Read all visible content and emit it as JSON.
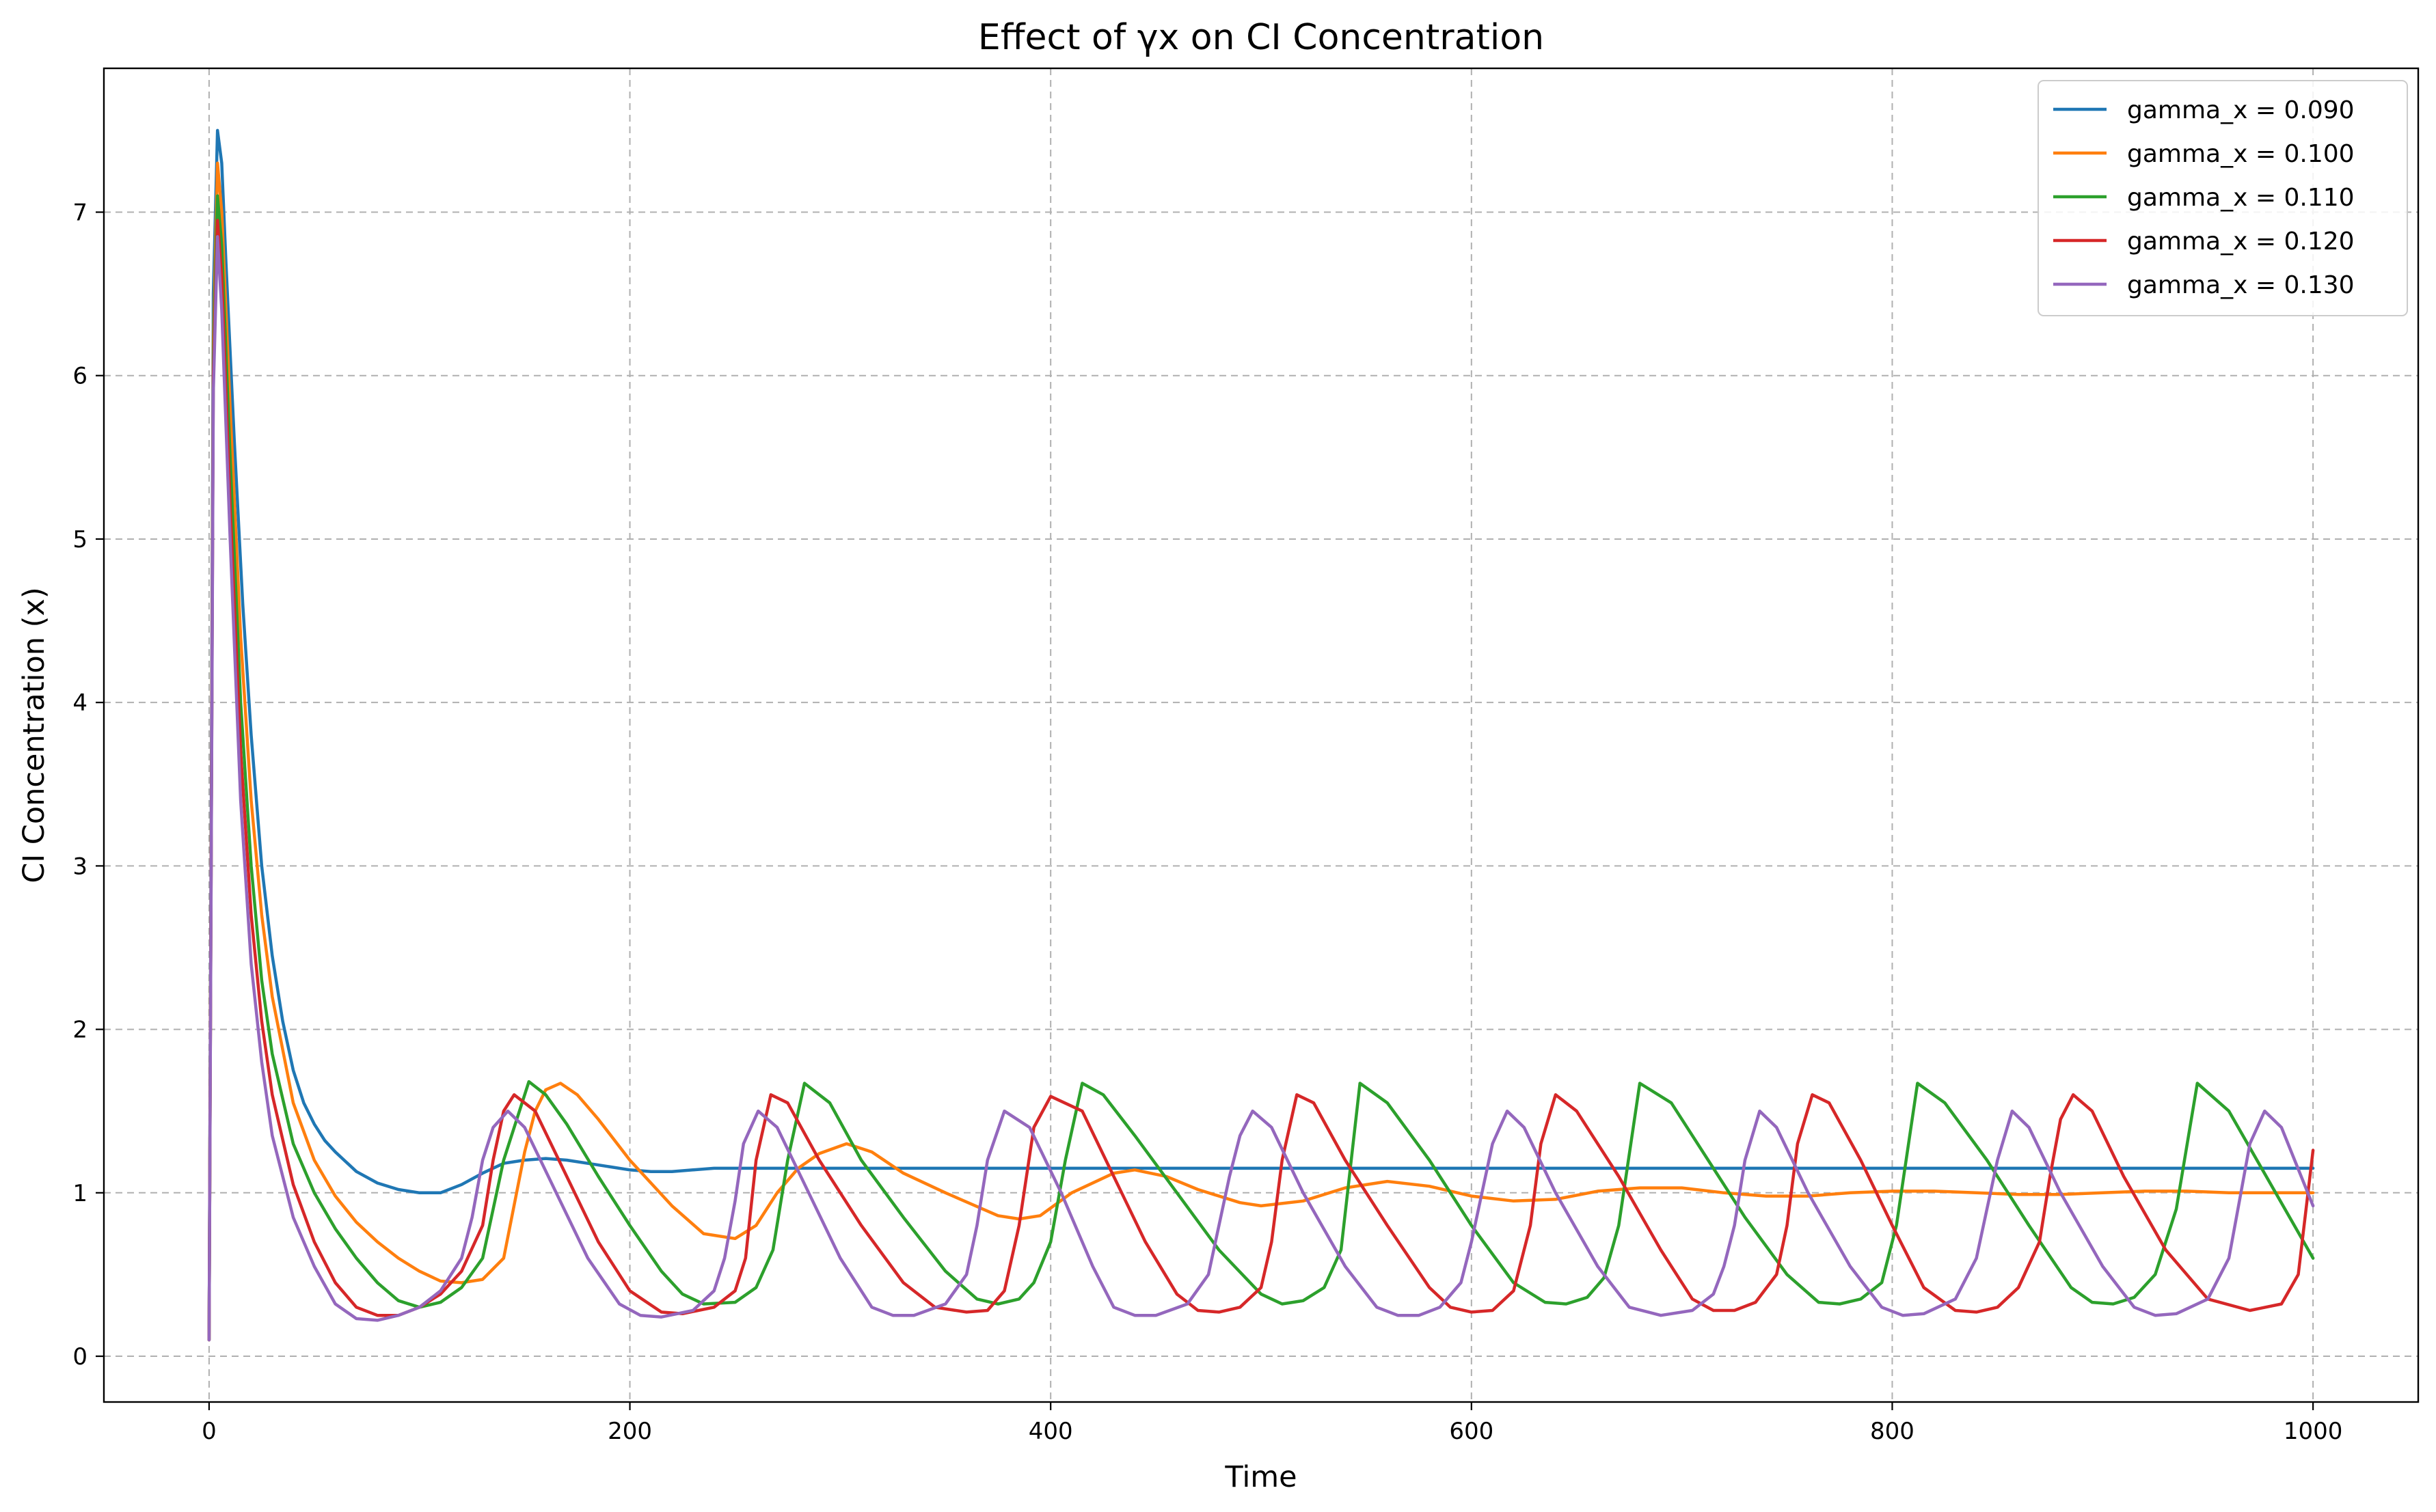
{
  "chart_data": {
    "type": "line",
    "title": "Effect of γx on CI Concentration",
    "xlabel": "Time",
    "ylabel": "CI Concentration (x)",
    "xlim": [
      -50,
      1050
    ],
    "ylim": [
      -0.28,
      7.88
    ],
    "xticks": [
      0,
      200,
      400,
      600,
      800,
      1000
    ],
    "yticks": [
      0,
      1,
      2,
      3,
      4,
      5,
      6,
      7
    ],
    "grid": true,
    "legend_position": "top-right",
    "series": [
      {
        "name": "gamma_x = 0.090",
        "color": "#1f77b4",
        "x": [
          0,
          2,
          4,
          6,
          8,
          12,
          16,
          20,
          25,
          30,
          35,
          40,
          45,
          50,
          55,
          60,
          70,
          80,
          90,
          100,
          110,
          120,
          130,
          140,
          150,
          160,
          170,
          180,
          190,
          200,
          210,
          220,
          230,
          240,
          260,
          280,
          300,
          350,
          400,
          1000
        ],
        "y": [
          0.1,
          6.5,
          7.5,
          7.3,
          6.7,
          5.6,
          4.6,
          3.8,
          3.0,
          2.45,
          2.05,
          1.75,
          1.55,
          1.42,
          1.32,
          1.25,
          1.13,
          1.06,
          1.02,
          1.0,
          1.0,
          1.05,
          1.12,
          1.18,
          1.2,
          1.21,
          1.2,
          1.18,
          1.16,
          1.14,
          1.13,
          1.13,
          1.14,
          1.15,
          1.15,
          1.15,
          1.15,
          1.15,
          1.15,
          1.15
        ]
      },
      {
        "name": "gamma_x = 0.100",
        "color": "#ff7f0e",
        "x": [
          0,
          2,
          4,
          6,
          10,
          15,
          20,
          25,
          30,
          40,
          50,
          60,
          70,
          80,
          90,
          100,
          110,
          120,
          130,
          140,
          150,
          155,
          160,
          167,
          175,
          185,
          200,
          220,
          235,
          250,
          260,
          270,
          280,
          290,
          303,
          315,
          330,
          350,
          375,
          385,
          395,
          410,
          430,
          440,
          455,
          470,
          490,
          500,
          520,
          540,
          560,
          580,
          600,
          620,
          640,
          660,
          680,
          700,
          720,
          740,
          760,
          780,
          800,
          820,
          840,
          860,
          880,
          900,
          920,
          940,
          960,
          980,
          1000
        ],
        "y": [
          0.1,
          6.2,
          7.3,
          7.0,
          5.8,
          4.4,
          3.4,
          2.7,
          2.2,
          1.55,
          1.2,
          0.98,
          0.82,
          0.7,
          0.6,
          0.52,
          0.46,
          0.45,
          0.47,
          0.6,
          1.25,
          1.5,
          1.63,
          1.67,
          1.6,
          1.45,
          1.2,
          0.92,
          0.75,
          0.72,
          0.8,
          1.0,
          1.15,
          1.24,
          1.3,
          1.25,
          1.12,
          1.0,
          0.86,
          0.84,
          0.86,
          1.0,
          1.12,
          1.14,
          1.1,
          1.02,
          0.94,
          0.92,
          0.95,
          1.03,
          1.07,
          1.04,
          0.98,
          0.95,
          0.96,
          1.01,
          1.03,
          1.03,
          1.0,
          0.98,
          0.98,
          1.0,
          1.01,
          1.01,
          1.0,
          0.99,
          0.99,
          1.0,
          1.01,
          1.01,
          1.0,
          1.0,
          1.0
        ]
      },
      {
        "name": "gamma_x = 0.110",
        "color": "#2ca02c",
        "x": [
          0,
          2,
          4,
          6,
          10,
          15,
          20,
          25,
          30,
          40,
          50,
          60,
          70,
          80,
          90,
          100,
          110,
          120,
          130,
          140,
          152,
          160,
          170,
          185,
          200,
          215,
          225,
          235,
          250,
          260,
          268,
          275,
          283,
          295,
          310,
          330,
          350,
          365,
          375,
          385,
          392,
          400,
          407,
          415,
          425,
          440,
          460,
          480,
          500,
          510,
          520,
          530,
          538,
          547,
          560,
          580,
          600,
          620,
          635,
          645,
          655,
          663,
          670,
          680,
          695,
          710,
          730,
          750,
          765,
          775,
          785,
          795,
          802,
          812,
          825,
          845,
          865,
          885,
          895,
          905,
          915,
          925,
          935,
          945,
          960,
          980,
          1000
        ],
        "y": [
          0.1,
          6.1,
          7.1,
          6.8,
          5.5,
          4.0,
          3.0,
          2.3,
          1.85,
          1.3,
          1.0,
          0.78,
          0.6,
          0.45,
          0.34,
          0.3,
          0.33,
          0.42,
          0.6,
          1.2,
          1.68,
          1.6,
          1.42,
          1.1,
          0.8,
          0.52,
          0.38,
          0.32,
          0.33,
          0.42,
          0.65,
          1.2,
          1.67,
          1.55,
          1.2,
          0.85,
          0.52,
          0.35,
          0.32,
          0.35,
          0.45,
          0.7,
          1.2,
          1.67,
          1.6,
          1.35,
          1.0,
          0.65,
          0.38,
          0.32,
          0.34,
          0.42,
          0.65,
          1.67,
          1.55,
          1.2,
          0.8,
          0.45,
          0.33,
          0.32,
          0.36,
          0.48,
          0.8,
          1.67,
          1.55,
          1.25,
          0.85,
          0.5,
          0.33,
          0.32,
          0.35,
          0.45,
          0.8,
          1.67,
          1.55,
          1.2,
          0.8,
          0.42,
          0.33,
          0.32,
          0.36,
          0.5,
          0.9,
          1.67,
          1.5,
          1.05,
          0.6
        ]
      },
      {
        "name": "gamma_x = 0.120",
        "color": "#d62728",
        "x": [
          0,
          2,
          4,
          6,
          10,
          15,
          20,
          25,
          30,
          40,
          50,
          60,
          70,
          80,
          90,
          100,
          110,
          120,
          130,
          135,
          140,
          145,
          155,
          170,
          185,
          200,
          215,
          225,
          240,
          250,
          255,
          260,
          267,
          275,
          290,
          310,
          330,
          345,
          360,
          370,
          378,
          385,
          392,
          400,
          415,
          430,
          445,
          460,
          470,
          480,
          490,
          500,
          505,
          510,
          517,
          525,
          540,
          560,
          580,
          590,
          600,
          610,
          620,
          628,
          633,
          640,
          650,
          670,
          690,
          705,
          715,
          725,
          735,
          745,
          750,
          755,
          762,
          770,
          785,
          800,
          815,
          830,
          840,
          850,
          860,
          870,
          875,
          880,
          886,
          895,
          910,
          930,
          950,
          970,
          985,
          993,
          1000
        ],
        "y": [
          0.1,
          6.0,
          6.95,
          6.6,
          5.2,
          3.7,
          2.7,
          2.05,
          1.6,
          1.05,
          0.7,
          0.45,
          0.3,
          0.25,
          0.25,
          0.3,
          0.38,
          0.52,
          0.8,
          1.2,
          1.5,
          1.6,
          1.5,
          1.1,
          0.7,
          0.4,
          0.27,
          0.26,
          0.3,
          0.4,
          0.6,
          1.2,
          1.6,
          1.55,
          1.2,
          0.8,
          0.45,
          0.3,
          0.27,
          0.28,
          0.4,
          0.8,
          1.4,
          1.59,
          1.5,
          1.1,
          0.7,
          0.38,
          0.28,
          0.27,
          0.3,
          0.42,
          0.7,
          1.2,
          1.6,
          1.55,
          1.2,
          0.8,
          0.42,
          0.3,
          0.27,
          0.28,
          0.4,
          0.8,
          1.3,
          1.6,
          1.5,
          1.1,
          0.65,
          0.35,
          0.28,
          0.28,
          0.33,
          0.5,
          0.8,
          1.3,
          1.6,
          1.55,
          1.2,
          0.8,
          0.42,
          0.28,
          0.27,
          0.3,
          0.42,
          0.7,
          1.1,
          1.45,
          1.6,
          1.5,
          1.1,
          0.65,
          0.35,
          0.28,
          0.32,
          0.5,
          1.26
        ]
      },
      {
        "name": "gamma_x = 0.130",
        "color": "#9467bd",
        "x": [
          0,
          2,
          4,
          6,
          10,
          15,
          20,
          25,
          30,
          40,
          50,
          60,
          70,
          80,
          90,
          100,
          110,
          120,
          125,
          130,
          135,
          142,
          150,
          165,
          180,
          195,
          205,
          215,
          230,
          240,
          245,
          250,
          254,
          261,
          270,
          285,
          300,
          315,
          325,
          335,
          350,
          360,
          365,
          370,
          378,
          390,
          405,
          420,
          430,
          440,
          450,
          465,
          475,
          480,
          485,
          490,
          496,
          505,
          520,
          540,
          555,
          565,
          575,
          585,
          595,
          600,
          605,
          610,
          617,
          625,
          640,
          660,
          675,
          690,
          705,
          715,
          720,
          725,
          730,
          737,
          745,
          760,
          780,
          795,
          805,
          815,
          830,
          840,
          845,
          850,
          857,
          865,
          880,
          900,
          915,
          925,
          935,
          950,
          960,
          965,
          970,
          977,
          985,
          1000
        ],
        "y": [
          0.1,
          5.9,
          6.85,
          6.4,
          5.0,
          3.4,
          2.4,
          1.8,
          1.35,
          0.85,
          0.55,
          0.32,
          0.23,
          0.22,
          0.25,
          0.3,
          0.4,
          0.6,
          0.85,
          1.2,
          1.4,
          1.5,
          1.4,
          1.0,
          0.6,
          0.32,
          0.25,
          0.24,
          0.28,
          0.4,
          0.6,
          0.95,
          1.3,
          1.5,
          1.4,
          1.0,
          0.6,
          0.3,
          0.25,
          0.25,
          0.32,
          0.5,
          0.8,
          1.2,
          1.5,
          1.4,
          1.0,
          0.55,
          0.3,
          0.25,
          0.25,
          0.32,
          0.5,
          0.8,
          1.1,
          1.35,
          1.5,
          1.4,
          1.0,
          0.55,
          0.3,
          0.25,
          0.25,
          0.3,
          0.45,
          0.7,
          1.0,
          1.3,
          1.5,
          1.4,
          1.0,
          0.55,
          0.3,
          0.25,
          0.28,
          0.38,
          0.55,
          0.8,
          1.2,
          1.5,
          1.4,
          1.0,
          0.55,
          0.3,
          0.25,
          0.26,
          0.35,
          0.6,
          0.9,
          1.2,
          1.5,
          1.4,
          1.0,
          0.55,
          0.3,
          0.25,
          0.26,
          0.35,
          0.6,
          0.95,
          1.3,
          1.5,
          1.4,
          0.92
        ]
      }
    ]
  }
}
